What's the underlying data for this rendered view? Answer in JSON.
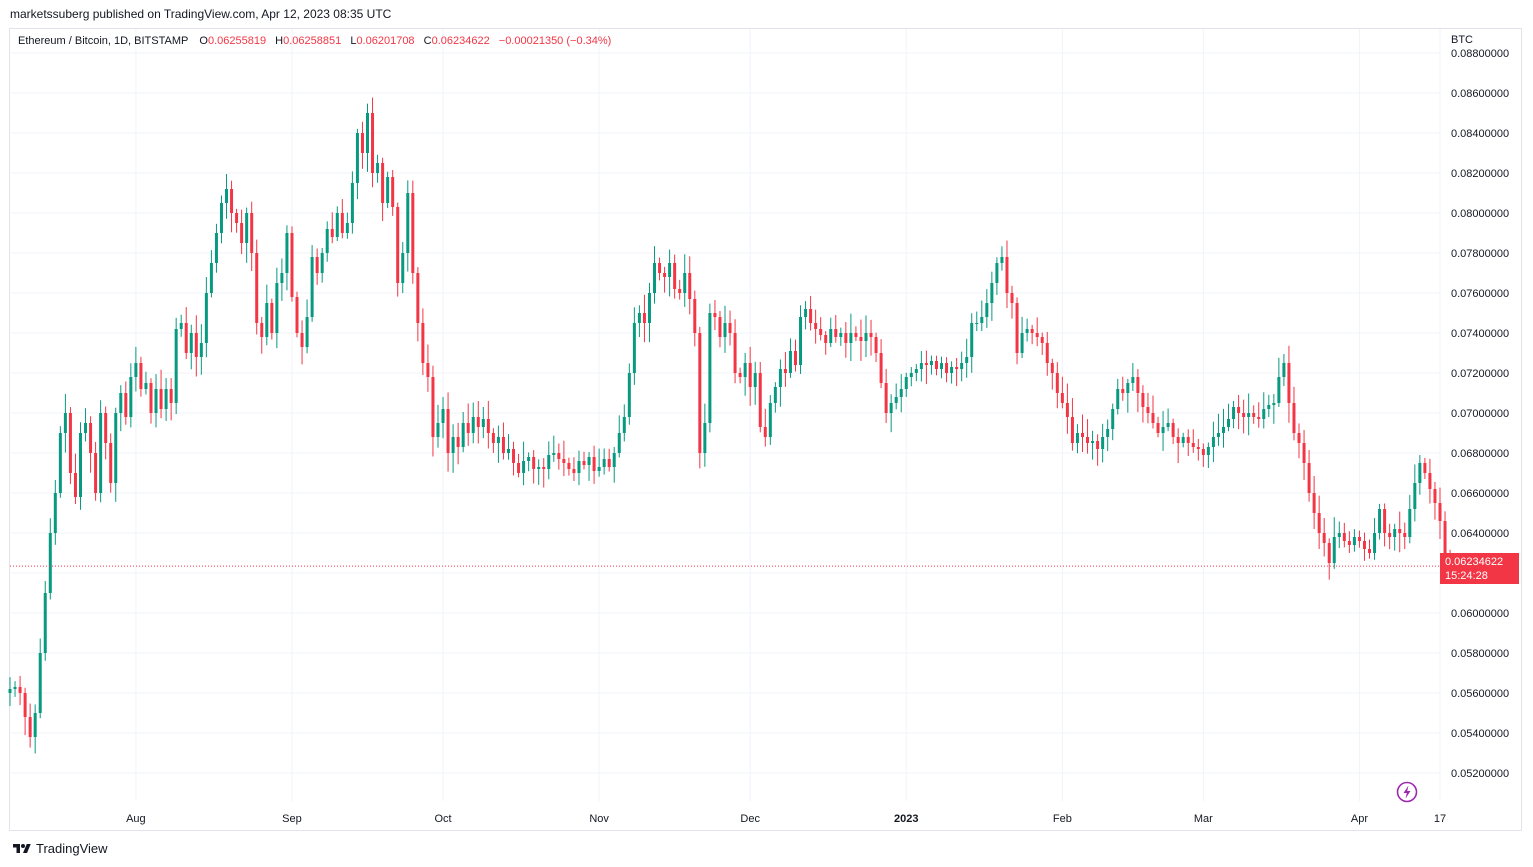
{
  "header": {
    "publisher": "marketssuberg published on TradingView.com, Apr 12, 2023 08:35 UTC"
  },
  "legend": {
    "symbol": "Ethereum / Bitcoin, 1D, BITSTAMP",
    "open_label": "O",
    "open": "0.06255819",
    "high_label": "H",
    "high": "0.06258851",
    "low_label": "L",
    "low": "0.06201708",
    "close_label": "C",
    "close": "0.06234622",
    "change": "−0.00021350 (−0.34%)"
  },
  "price_tag": {
    "price": "0.06234622",
    "countdown": "15:24:28"
  },
  "footer": {
    "brand": "TradingView"
  },
  "colors": {
    "up": "#089981",
    "down": "#f23645",
    "grid": "#f0f3fa",
    "border": "#e0e3eb"
  },
  "icons": {
    "logo": "tradingview-logo-icon",
    "alert": "lightning-icon"
  },
  "chart_data": {
    "type": "candlestick",
    "y_unit": "BTC",
    "ylim": [
      0.0506,
      0.0892
    ],
    "y_ticks": [
      0.052,
      0.054,
      0.056,
      0.058,
      0.06,
      0.062,
      0.064,
      0.066,
      0.068,
      0.07,
      0.072,
      0.074,
      0.076,
      0.078,
      0.08,
      0.082,
      0.084,
      0.086,
      0.088
    ],
    "y_tick_labels": [
      "0.05200000",
      "0.05400000",
      "0.05600000",
      "0.05800000",
      "0.06000000",
      "0.06200000",
      "0.06400000",
      "0.06600000",
      "0.06800000",
      "0.07000000",
      "0.07200000",
      "0.07400000",
      "0.07600000",
      "0.07800000",
      "0.08000000",
      "0.08200000",
      "0.08400000",
      "0.08600000",
      "0.08800000"
    ],
    "x_start": "2022-07-07",
    "x_end": "2023-04-17",
    "x_ticks": [
      {
        "date": "2022-08-01",
        "label": "Aug",
        "bold": false
      },
      {
        "date": "2022-09-01",
        "label": "Sep",
        "bold": false
      },
      {
        "date": "2022-10-01",
        "label": "Oct",
        "bold": false
      },
      {
        "date": "2022-11-01",
        "label": "Nov",
        "bold": false
      },
      {
        "date": "2022-12-01",
        "label": "Dec",
        "bold": false
      },
      {
        "date": "2023-01-01",
        "label": "2023",
        "bold": true
      },
      {
        "date": "2023-02-01",
        "label": "Feb",
        "bold": false
      },
      {
        "date": "2023-03-01",
        "label": "Mar",
        "bold": false
      },
      {
        "date": "2023-04-01",
        "label": "Apr",
        "bold": false
      },
      {
        "date": "2023-04-17",
        "label": "17",
        "bold": false
      }
    ],
    "grid": true,
    "last_price": 0.06234622,
    "first_date": "2022-07-07",
    "closes": [
      0.0562,
      0.0563,
      0.056,
      0.0548,
      0.0538,
      0.055,
      0.058,
      0.061,
      0.064,
      0.066,
      0.069,
      0.07,
      0.067,
      0.0658,
      0.069,
      0.0695,
      0.068,
      0.066,
      0.07,
      0.0685,
      0.0665,
      0.07,
      0.071,
      0.0698,
      0.0718,
      0.0725,
      0.0712,
      0.0715,
      0.07,
      0.0712,
      0.0702,
      0.0712,
      0.0705,
      0.0742,
      0.0745,
      0.073,
      0.074,
      0.0728,
      0.0735,
      0.076,
      0.0775,
      0.079,
      0.0805,
      0.0812,
      0.08,
      0.0795,
      0.0785,
      0.08,
      0.078,
      0.0745,
      0.0738,
      0.0755,
      0.074,
      0.0765,
      0.077,
      0.079,
      0.0758,
      0.074,
      0.0733,
      0.0748,
      0.0778,
      0.077,
      0.078,
      0.0792,
      0.0788,
      0.08,
      0.079,
      0.0795,
      0.0815,
      0.084,
      0.083,
      0.085,
      0.082,
      0.0825,
      0.0805,
      0.0818,
      0.0803,
      0.0765,
      0.078,
      0.081,
      0.077,
      0.0745,
      0.0725,
      0.0718,
      0.0688,
      0.0695,
      0.0702,
      0.068,
      0.0688,
      0.0683,
      0.0695,
      0.069,
      0.0698,
      0.0693,
      0.0697,
      0.069,
      0.0685,
      0.0688,
      0.068,
      0.0682,
      0.0675,
      0.067,
      0.0676,
      0.0678,
      0.0672,
      0.0673,
      0.0672,
      0.0679,
      0.068,
      0.0677,
      0.0675,
      0.0672,
      0.067,
      0.0676,
      0.0674,
      0.0678,
      0.0671,
      0.0673,
      0.0677,
      0.0673,
      0.068,
      0.069,
      0.0698,
      0.072,
      0.0745,
      0.075,
      0.0745,
      0.076,
      0.0775,
      0.077,
      0.0768,
      0.0775,
      0.0762,
      0.076,
      0.077,
      0.0757,
      0.074,
      0.068,
      0.0695,
      0.075,
      0.0748,
      0.0738,
      0.0745,
      0.074,
      0.072,
      0.0718,
      0.0725,
      0.0713,
      0.072,
      0.0693,
      0.0688,
      0.0705,
      0.0713,
      0.0722,
      0.072,
      0.0731,
      0.0724,
      0.0748,
      0.0752,
      0.0745,
      0.0742,
      0.0739,
      0.0735,
      0.0742,
      0.0738,
      0.074,
      0.0735,
      0.074,
      0.0738,
      0.0736,
      0.074,
      0.0738,
      0.073,
      0.0715,
      0.07,
      0.0705,
      0.0708,
      0.0712,
      0.0718,
      0.072,
      0.0722,
      0.0725,
      0.0724,
      0.0726,
      0.0722,
      0.0725,
      0.072,
      0.0723,
      0.0722,
      0.0725,
      0.0728,
      0.0745,
      0.0745,
      0.0748,
      0.0755,
      0.0765,
      0.0775,
      0.0778,
      0.076,
      0.0755,
      0.073,
      0.074,
      0.0742,
      0.074,
      0.0738,
      0.0735,
      0.0725,
      0.072,
      0.071,
      0.0705,
      0.0698,
      0.0685,
      0.069,
      0.0688,
      0.0685,
      0.0686,
      0.0682,
      0.0688,
      0.0692,
      0.0702,
      0.0712,
      0.071,
      0.0715,
      0.0718,
      0.071,
      0.0703,
      0.07,
      0.0695,
      0.069,
      0.0693,
      0.0695,
      0.0688,
      0.0685,
      0.0688,
      0.0685,
      0.0683,
      0.0682,
      0.0679,
      0.0683,
      0.0688,
      0.069,
      0.0693,
      0.0697,
      0.0703,
      0.07,
      0.0698,
      0.07,
      0.0698,
      0.0697,
      0.0702,
      0.0704,
      0.0705,
      0.0718,
      0.0725,
      0.0705,
      0.069,
      0.0685,
      0.0675,
      0.066,
      0.065,
      0.064,
      0.0635,
      0.0625,
      0.0638,
      0.064,
      0.0636,
      0.0634,
      0.0638,
      0.0636,
      0.0632,
      0.063,
      0.064,
      0.0652,
      0.064,
      0.0638,
      0.0642,
      0.064,
      0.0638,
      0.0652,
      0.0665,
      0.0675,
      0.067,
      0.0662,
      0.0655,
      0.0646,
      0.0625,
      0.0623
    ]
  }
}
